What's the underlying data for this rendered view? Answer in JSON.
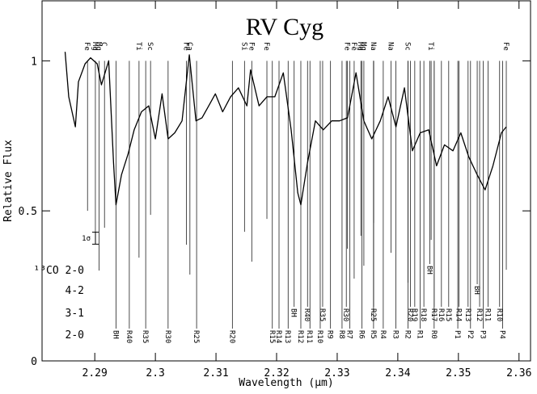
{
  "chart_data": {
    "type": "line",
    "title": "RV Cyg",
    "xlabel": "Wavelength (μm)",
    "ylabel": "Relative Flux",
    "xlim": [
      2.2813,
      2.3619
    ],
    "ylim": [
      0,
      1.2
    ],
    "xticks": [
      2.29,
      2.3,
      2.31,
      2.32,
      2.33,
      2.34,
      2.35,
      2.36
    ],
    "yticks": [
      0,
      0.5,
      1
    ],
    "series": [
      {
        "color": "#000000",
        "x": [
          2.2851,
          2.2857,
          2.2868,
          2.2873,
          2.2884,
          2.2893,
          2.2904,
          2.2911,
          2.2923,
          2.2931,
          2.2935,
          2.2944,
          2.2955,
          2.2965,
          2.2977,
          2.2989,
          2.3,
          2.3011,
          2.3021,
          2.3032,
          2.3044,
          2.3056,
          2.3067,
          2.3077,
          2.3088,
          2.3099,
          2.3111,
          2.3124,
          2.3137,
          2.3151,
          2.3157,
          2.3171,
          2.3184,
          2.3197,
          2.3211,
          2.3224,
          2.3235,
          2.324,
          2.3251,
          2.3264,
          2.3277,
          2.3291,
          2.3304,
          2.3317,
          2.3331,
          2.3344,
          2.3357,
          2.3371,
          2.3384,
          2.3397,
          2.3411,
          2.3424,
          2.3437,
          2.3451,
          2.3464,
          2.3477,
          2.3491,
          2.3504,
          2.3517,
          2.3531,
          2.3544,
          2.3557,
          2.3571,
          2.3579
        ],
        "values": [
          1.03,
          0.88,
          0.78,
          0.93,
          0.99,
          1.01,
          0.99,
          0.92,
          1.0,
          0.66,
          0.52,
          0.62,
          0.69,
          0.77,
          0.83,
          0.85,
          0.74,
          0.89,
          0.74,
          0.76,
          0.8,
          1.02,
          0.8,
          0.81,
          0.85,
          0.89,
          0.83,
          0.88,
          0.91,
          0.85,
          0.97,
          0.85,
          0.88,
          0.88,
          0.96,
          0.77,
          0.56,
          0.52,
          0.66,
          0.8,
          0.77,
          0.8,
          0.8,
          0.81,
          0.96,
          0.8,
          0.74,
          0.8,
          0.88,
          0.78,
          0.91,
          0.7,
          0.76,
          0.77,
          0.65,
          0.72,
          0.7,
          0.76,
          0.68,
          0.62,
          0.57,
          0.65,
          0.76,
          0.78
        ]
      }
    ],
    "atomic_lines": [
      {
        "label": "Fe",
        "x": 2.2888
      },
      {
        "label": "Mg",
        "x": 2.2901
      },
      {
        "label": "Mg",
        "x": 2.2907
      },
      {
        "label": "C",
        "x": 2.2916
      },
      {
        "label": "Ti",
        "x": 2.2973
      },
      {
        "label": "Sc",
        "x": 2.2992
      },
      {
        "label": "Fe",
        "x": 2.3051
      },
      {
        "label": "Ca",
        "x": 2.3057
      },
      {
        "label": "Si",
        "x": 2.3147
      },
      {
        "label": "Fe",
        "x": 2.3159
      },
      {
        "label": "Fe",
        "x": 2.3184
      },
      {
        "label": "Fe",
        "x": 2.3317
      },
      {
        "label": "Fe",
        "x": 2.3328
      },
      {
        "label": "Mg",
        "x": 2.3339
      },
      {
        "label": "Mg",
        "x": 2.3344
      },
      {
        "label": "Na",
        "x": 2.336
      },
      {
        "label": "Na",
        "x": 2.3389
      },
      {
        "label": "Sc",
        "x": 2.3417
      },
      {
        "label": "Ti",
        "x": 2.3455
      },
      {
        "label": "Fe",
        "x": 2.3579
      }
    ],
    "co_bands": [
      {
        "label": "2-0",
        "lines": [
          {
            "label": "BH",
            "x": 2.2935
          },
          {
            "label": "R40",
            "x": 2.2957
          },
          {
            "label": "R35",
            "x": 2.2984
          },
          {
            "label": "R30",
            "x": 2.3021
          },
          {
            "label": "R25",
            "x": 2.3068
          },
          {
            "label": "R20",
            "x": 2.3127
          },
          {
            "label": "R15",
            "x": 2.3193
          },
          {
            "label": "R14",
            "x": 2.3204
          },
          {
            "label": "R13",
            "x": 2.3219
          },
          {
            "label": "R12",
            "x": 2.324
          },
          {
            "label": "R11",
            "x": 2.3255
          },
          {
            "label": "R10",
            "x": 2.3272
          },
          {
            "label": "R9",
            "x": 2.3289
          },
          {
            "label": "R8",
            "x": 2.3308
          },
          {
            "label": "R7",
            "x": 2.3321
          },
          {
            "label": "R6",
            "x": 2.3341
          },
          {
            "label": "R5",
            "x": 2.336
          },
          {
            "label": "R4",
            "x": 2.3376
          },
          {
            "label": "R3",
            "x": 2.3397
          },
          {
            "label": "R2",
            "x": 2.3417
          },
          {
            "label": "R1",
            "x": 2.3437
          },
          {
            "label": "R0",
            "x": 2.346
          },
          {
            "label": "P1",
            "x": 2.3499
          },
          {
            "label": "P2",
            "x": 2.352
          },
          {
            "label": "P3",
            "x": 2.3541
          },
          {
            "label": "P4",
            "x": 2.3573
          }
        ]
      },
      {
        "label": "3-1",
        "lines": [
          {
            "label": "BH",
            "x": 2.3229
          },
          {
            "label": "R40",
            "x": 2.3251
          },
          {
            "label": "R35",
            "x": 2.3276
          },
          {
            "label": "R30",
            "x": 2.3315
          },
          {
            "label": "R25",
            "x": 2.336
          },
          {
            "label": "R20",
            "x": 2.3421
          },
          {
            "label": "R19",
            "x": 2.3428
          },
          {
            "label": "R18",
            "x": 2.3443
          },
          {
            "label": "R17",
            "x": 2.346
          },
          {
            "label": "R16",
            "x": 2.3472
          },
          {
            "label": "R15",
            "x": 2.3484
          },
          {
            "label": "R14",
            "x": 2.3501
          },
          {
            "label": "R13",
            "x": 2.3516
          },
          {
            "label": "R12",
            "x": 2.3535
          },
          {
            "label": "R11",
            "x": 2.3549
          },
          {
            "label": "R10",
            "x": 2.3568
          }
        ]
      },
      {
        "label": "4-2",
        "lines": [
          {
            "label": "BH",
            "x": 2.3531
          }
        ]
      },
      {
        "label": "¹³CO 2-0",
        "lines": [
          {
            "label": "BH",
            "x": 2.3453
          }
        ]
      }
    ],
    "sigma_bar": {
      "label": "1σ",
      "size": 0.04
    }
  }
}
